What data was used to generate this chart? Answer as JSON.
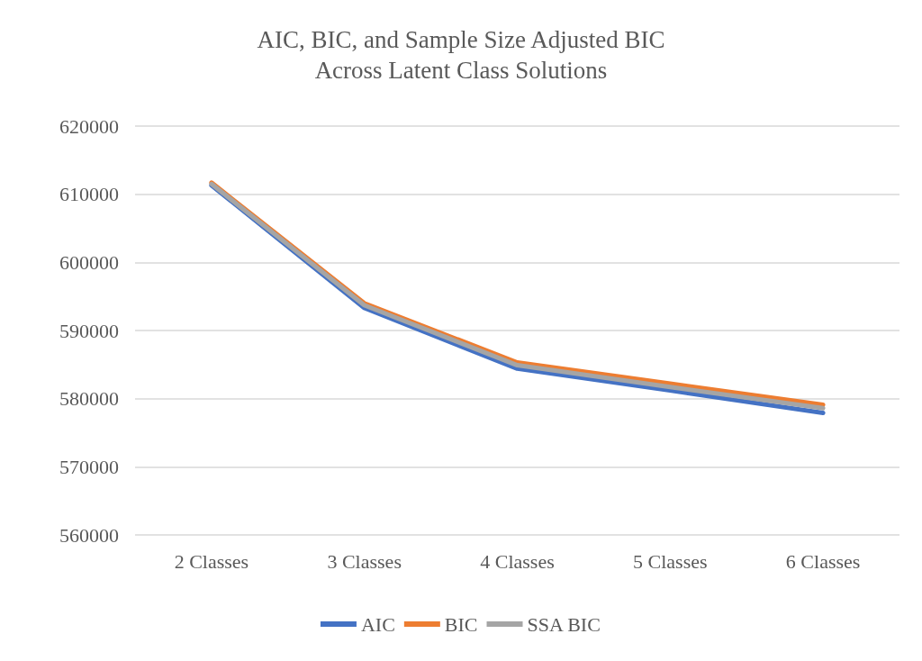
{
  "chart_data": {
    "type": "line",
    "title": "AIC, BIC, and Sample Size Adjusted BIC\nAcross Latent Class Solutions",
    "categories": [
      "2 Classes",
      "3 Classes",
      "4 Classes",
      "5 Classes",
      "6 Classes"
    ],
    "series": [
      {
        "name": "AIC",
        "color": "#4472c4",
        "values": [
          611300,
          593300,
          584400,
          581200,
          577900
        ]
      },
      {
        "name": "BIC",
        "color": "#ed7d31",
        "values": [
          611700,
          594000,
          585300,
          582200,
          579100
        ]
      },
      {
        "name": "SSA BIC",
        "color": "#a5a5a5",
        "values": [
          611500,
          593700,
          584900,
          581700,
          578600
        ]
      }
    ],
    "ylim": [
      560000,
      620000
    ],
    "yticks": [
      560000,
      570000,
      580000,
      590000,
      600000,
      610000,
      620000
    ],
    "grid": "y",
    "legend": "bottom",
    "marker": "none",
    "line_style": "solid"
  }
}
